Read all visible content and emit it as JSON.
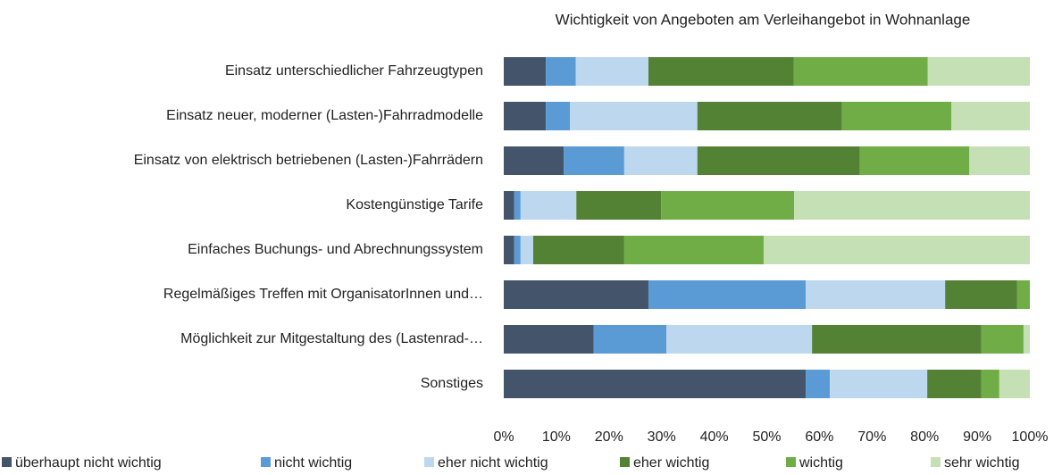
{
  "chart_data": {
    "type": "stacked-bar-horizontal",
    "title": "Wichtigkeit von Angeboten am Verleihangebot in Wohnanlage",
    "categories": [
      "Einsatz unterschiedlicher Fahrzeugtypen",
      "Einsatz neuer, moderner (Lasten-)Fahrradmodelle",
      "Einsatz von elektrisch betriebenen (Lasten-)Fahrrädern",
      "Kostengünstige Tarife",
      "Einfaches Buchungs- und Abrechnungssystem",
      "Regelmäßiges Treffen mit OrganisatorInnen und…",
      "Möglichkeit zur Mitgestaltung des (Lastenrad-…",
      "Sonstiges"
    ],
    "series": [
      {
        "name": "überhaupt nicht wichtig",
        "color": "#44546a",
        "values": [
          8,
          8,
          11.4,
          2,
          2,
          27.5,
          17.1,
          57.4
        ]
      },
      {
        "name": "nicht wichtig",
        "color": "#5b9bd5",
        "values": [
          5.7,
          4.6,
          11.5,
          1.2,
          1.2,
          29.9,
          13.8,
          4.6
        ]
      },
      {
        "name": "eher nicht wichtig",
        "color": "#bdd7ee",
        "values": [
          13.8,
          24.2,
          13.9,
          10.6,
          2.4,
          26.5,
          27.7,
          18.5
        ]
      },
      {
        "name": "eher wichtig",
        "color": "#548235",
        "values": [
          27.6,
          27.5,
          30.9,
          16.1,
          17.3,
          13.7,
          32.2,
          10.3
        ]
      },
      {
        "name": "wichtig",
        "color": "#70ad47",
        "values": [
          25.5,
          20.8,
          20.8,
          25.3,
          26.5,
          2.4,
          8.0,
          3.4
        ]
      },
      {
        "name": "sehr wichtig",
        "color": "#c5e0b4",
        "values": [
          19.4,
          14.9,
          11.5,
          44.8,
          50.6,
          0,
          1.2,
          5.8
        ]
      }
    ],
    "xlim": [
      0,
      100
    ],
    "xticks": [
      {
        "value": 0,
        "label": "0%"
      },
      {
        "value": 10,
        "label": "10%"
      },
      {
        "value": 20,
        "label": "20%"
      },
      {
        "value": 30,
        "label": "30%"
      },
      {
        "value": 40,
        "label": "40%"
      },
      {
        "value": 50,
        "label": "50%"
      },
      {
        "value": 60,
        "label": "60%"
      },
      {
        "value": 70,
        "label": "70%"
      },
      {
        "value": 80,
        "label": "80%"
      },
      {
        "value": 90,
        "label": "90%"
      },
      {
        "value": 100,
        "label": "100%"
      }
    ],
    "legend": "bottom"
  }
}
